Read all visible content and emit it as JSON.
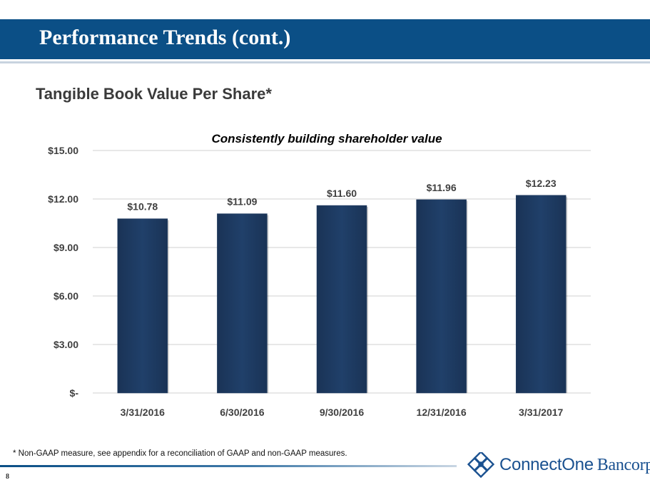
{
  "slide": {
    "title": "Performance Trends (cont.)",
    "subtitle": "Tangible Book Value Per Share*",
    "footnote": "* Non-GAAP measure, see appendix for a reconciliation of GAAP and non-GAAP measures.",
    "page_number": "8",
    "logo": {
      "word1": "ConnectOne",
      "word2": "Bancorp"
    }
  },
  "colors": {
    "title_bar": "#0b4f86",
    "bar_fill": "#1f3a60",
    "grid": "#d9d9d9",
    "text": "#404040"
  },
  "chart_data": {
    "type": "bar",
    "title": "Consistently building shareholder value",
    "categories": [
      "3/31/2016",
      "6/30/2016",
      "9/30/2016",
      "12/31/2016",
      "3/31/2017"
    ],
    "values": [
      10.78,
      11.09,
      11.6,
      11.96,
      12.23
    ],
    "data_labels": [
      "$10.78",
      "$11.09",
      "$11.60",
      "$11.96",
      "$12.23"
    ],
    "y_ticks": [
      0,
      3,
      6,
      9,
      12,
      15
    ],
    "y_tick_labels": [
      "$-",
      "$3.00",
      "$6.00",
      "$9.00",
      "$12.00",
      "$15.00"
    ],
    "ylim": [
      0,
      15
    ],
    "grid": true
  }
}
